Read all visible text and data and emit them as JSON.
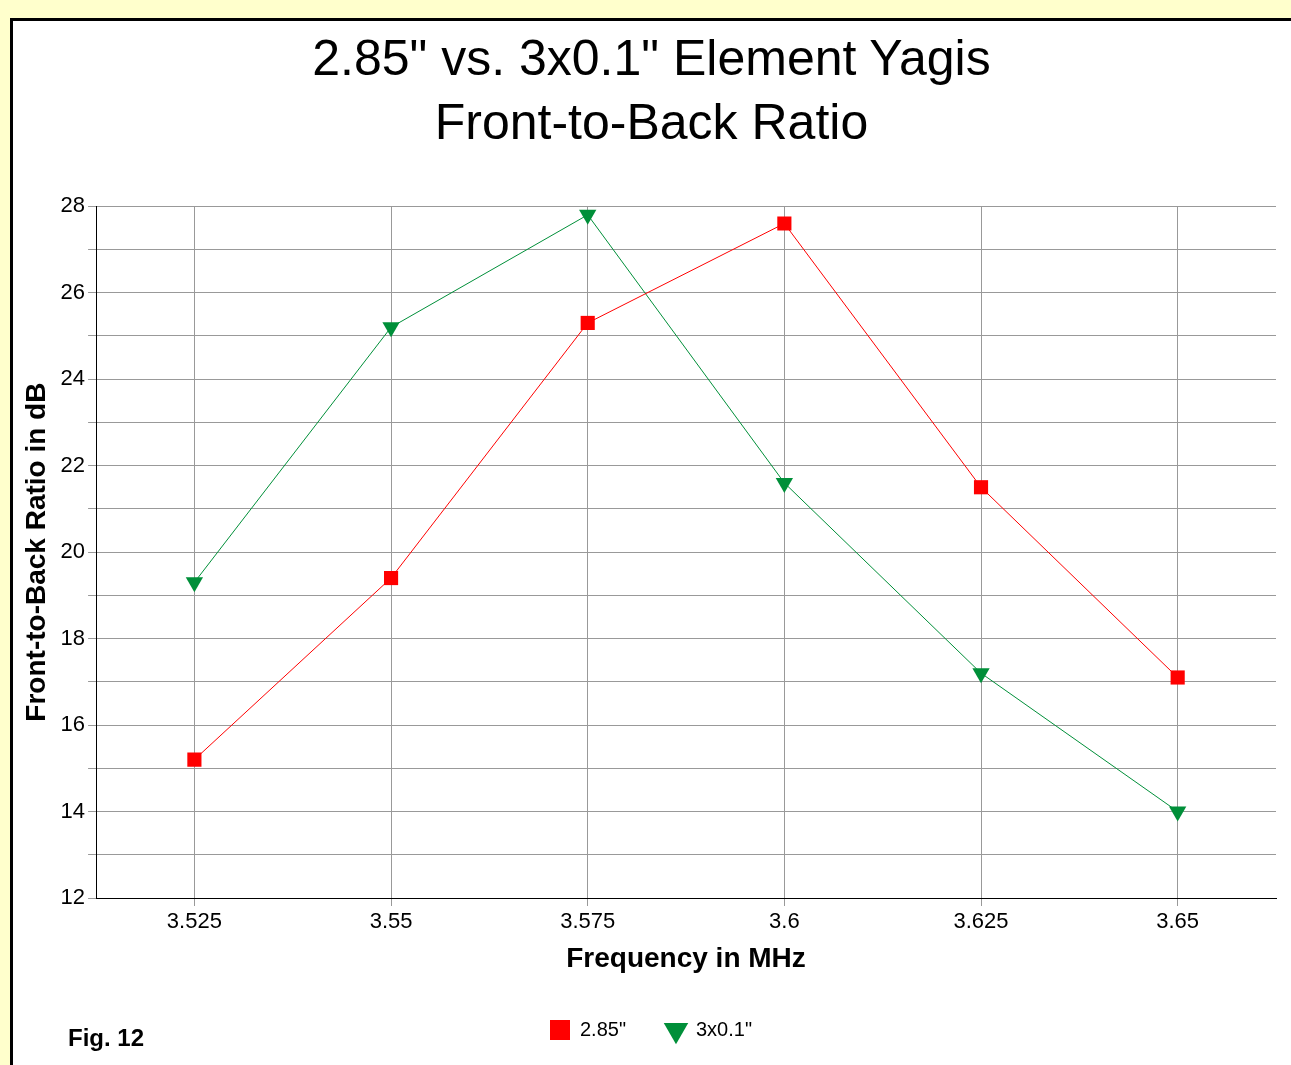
{
  "chart_data": {
    "type": "line",
    "title": "2.85\" vs. 3x0.1\" Element Yagis",
    "subtitle": "Front-to-Back Ratio",
    "xlabel": "Frequency in MHz",
    "ylabel": "Front-to-Back Ratio in dB",
    "categories": [
      "3.525",
      "3.55",
      "3.575",
      "3.6",
      "3.625",
      "3.65"
    ],
    "series": [
      {
        "name": "2.85\"",
        "color": "#ff0000",
        "marker": "square",
        "values": [
          15.2,
          19.4,
          25.3,
          27.6,
          21.5,
          17.1
        ]
      },
      {
        "name": "3x0.1\"",
        "color": "#008f39",
        "marker": "triangle",
        "values": [
          19.3,
          25.2,
          27.8,
          21.6,
          17.2,
          14.0
        ]
      }
    ],
    "ylim": [
      12,
      28
    ],
    "yticks": [
      12,
      {
        "value": 13,
        "label": null
      },
      14,
      {
        "value": 15,
        "label": null
      },
      16,
      {
        "value": 17,
        "label": null
      },
      18,
      {
        "value": 19,
        "label": null
      },
      20,
      {
        "value": 21,
        "label": null
      },
      22,
      {
        "value": 23,
        "label": null
      },
      24,
      {
        "value": 25,
        "label": null
      },
      26,
      {
        "value": 27,
        "label": null
      },
      28
    ],
    "grid": true,
    "legend": "bottom",
    "line_style": "solid",
    "annotations": [
      "Fig. 12"
    ]
  }
}
